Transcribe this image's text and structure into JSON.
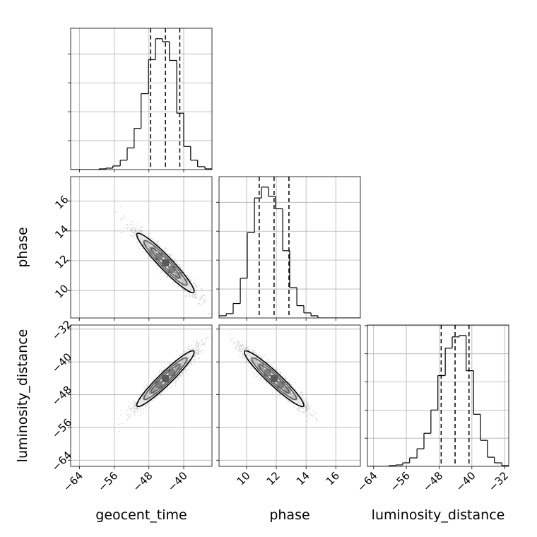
{
  "chart_data": {
    "type": "corner",
    "parameters": [
      "geocent_time",
      "phase",
      "luminosity_distance"
    ],
    "grid": true,
    "tick_labels": {
      "geocent_time": [
        "−64",
        "−56",
        "−48",
        "−40"
      ],
      "phase_x": [
        "10",
        "12",
        "14",
        "16"
      ],
      "phase_y": [
        "10",
        "12",
        "14",
        "16"
      ],
      "luminosity_distance_x": [
        "−64",
        "−56",
        "−48",
        "−40",
        "−32"
      ],
      "luminosity_distance_y": [
        "−64",
        "−56",
        "−48",
        "−40",
        "−32"
      ]
    },
    "ranges": {
      "geocent_time": [
        -66,
        -33.5
      ],
      "phase": [
        8.15,
        17.65
      ],
      "luminosity_distance": [
        -65.5,
        -31
      ]
    },
    "quantiles": {
      "geocent_time": [
        -47.6,
        -44.2,
        -40.9
      ],
      "phase": [
        10.85,
        11.85,
        12.85
      ],
      "luminosity_distance": [
        -47.5,
        -44.1,
        -40.7
      ]
    },
    "histograms": {
      "geocent_time": {
        "edges": [
          -66,
          -64.4,
          -62.8,
          -61.1,
          -59.5,
          -57.9,
          -56.3,
          -54.6,
          -53,
          -51.4,
          -49.8,
          -48.1,
          -46.5,
          -44.9,
          -43.3,
          -41.6,
          -40,
          -38.4,
          -36.8,
          -35.1,
          -33.5
        ],
        "counts": [
          0,
          0,
          0,
          0,
          1,
          2,
          5,
          13,
          30,
          57,
          105,
          152,
          181,
          177,
          151,
          78,
          32,
          13,
          4,
          1
        ]
      },
      "phase": {
        "edges": [
          8.15,
          8.63,
          9.1,
          9.58,
          10.05,
          10.53,
          11,
          11.48,
          11.95,
          12.43,
          12.9,
          13.38,
          13.85,
          14.33,
          14.8,
          15.28,
          15.75,
          16.23,
          16.7,
          17.18,
          17.65
        ],
        "counts": [
          3,
          6,
          20,
          55,
          118,
          166,
          181,
          168,
          151,
          93,
          42,
          17,
          7,
          3,
          0,
          0,
          0,
          0,
          0,
          0
        ]
      },
      "luminosity_distance": {
        "edges": [
          -65.5,
          -63.8,
          -62.1,
          -60.3,
          -58.6,
          -56.9,
          -55.2,
          -53.4,
          -51.7,
          -50,
          -48.3,
          -46.5,
          -44.8,
          -43.1,
          -41.4,
          -39.6,
          -37.9,
          -36.2,
          -34.5,
          -32.7,
          -31
        ],
        "counts": [
          0,
          0,
          0,
          1,
          2,
          5,
          12,
          25,
          47,
          80,
          129,
          168,
          184,
          186,
          136,
          74,
          37,
          13,
          5,
          1
        ]
      }
    },
    "pairs": [
      {
        "x": "geocent_time",
        "y": "phase",
        "mean": [
          -44.2,
          11.85
        ],
        "std": [
          3.3,
          1.0
        ],
        "rho": -0.95,
        "scatter_box": {
          "x": [
            -62,
            -33.5
          ],
          "y": [
            8.5,
            15.9
          ]
        }
      },
      {
        "x": "geocent_time",
        "y": "luminosity_distance",
        "mean": [
          -44.2,
          -44.1
        ],
        "std": [
          3.3,
          3.4
        ],
        "rho": 0.95,
        "scatter_box": {
          "x": [
            -62,
            -33.5
          ],
          "y": [
            -60,
            -31.5
          ]
        }
      },
      {
        "x": "phase",
        "y": "luminosity_distance",
        "mean": [
          11.85,
          -44.1
        ],
        "std": [
          1.0,
          3.4
        ],
        "rho": -0.95,
        "scatter_box": {
          "x": [
            8.2,
            15.9
          ],
          "y": [
            -60,
            -31.5
          ]
        }
      }
    ],
    "contour_levels_sigma": [
      1,
      1.5,
      2
    ]
  }
}
